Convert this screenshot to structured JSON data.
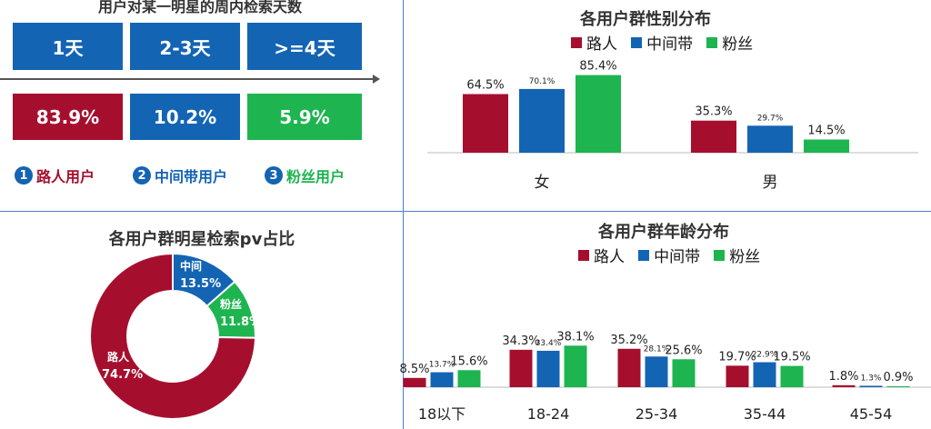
{
  "colors": {
    "lu": "#a50f2d",
    "zhong": "#1464b4",
    "fen": "#1eb450",
    "blue_box": "#1464b4"
  },
  "days": {
    "title": "用户对某一明星的周内检索天数",
    "headers": [
      "1天",
      "2-3天",
      ">=4天"
    ],
    "values": [
      "83.9%",
      "10.2%",
      "5.9%"
    ],
    "types": [
      {
        "num": "1",
        "label": "路人用户"
      },
      {
        "num": "2",
        "label": "中间带用户"
      },
      {
        "num": "3",
        "label": "粉丝用户"
      }
    ]
  },
  "legend": [
    "路人",
    "中间带",
    "粉丝"
  ],
  "chart_data": [
    {
      "type": "bar",
      "title": "各用户群性别分布",
      "categories": [
        "女",
        "男"
      ],
      "series": [
        {
          "name": "路人",
          "values": [
            64.5,
            35.3
          ],
          "labels": [
            "64.5%",
            "35.3%"
          ]
        },
        {
          "name": "中间带",
          "values": [
            70.1,
            29.7
          ],
          "labels": [
            "70.1%",
            "29.7%"
          ]
        },
        {
          "name": "粉丝",
          "values": [
            85.4,
            14.5
          ],
          "labels": [
            "85.4%",
            "14.5%"
          ]
        }
      ]
    },
    {
      "type": "pie",
      "title": "各用户群明星检索pv占比",
      "slices": [
        {
          "name": "路人",
          "value": 74.7,
          "label": "74.7%"
        },
        {
          "name": "中间",
          "value": 13.5,
          "label": "13.5%"
        },
        {
          "name": "粉丝",
          "value": 11.8,
          "label": "11.8%"
        }
      ]
    },
    {
      "type": "bar",
      "title": "各用户群年龄分布",
      "categories": [
        "18以下",
        "18-24",
        "25-34",
        "35-44",
        "45-54"
      ],
      "series": [
        {
          "name": "路人",
          "values": [
            8.5,
            34.3,
            35.2,
            19.7,
            1.8
          ],
          "labels": [
            "8.5%",
            "34.3%",
            "35.2%",
            "19.7%",
            "1.8%"
          ]
        },
        {
          "name": "中间带",
          "values": [
            13.7,
            33.4,
            28.1,
            22.9,
            1.3
          ],
          "labels": [
            "13.7%",
            "33.4%",
            "28.1%",
            "22.9%",
            "1.3%"
          ]
        },
        {
          "name": "粉丝",
          "values": [
            15.6,
            38.1,
            25.6,
            19.5,
            0.9
          ],
          "labels": [
            "15.6%",
            "38.1%",
            "25.6%",
            "19.5%",
            "0.9%"
          ]
        }
      ]
    }
  ]
}
